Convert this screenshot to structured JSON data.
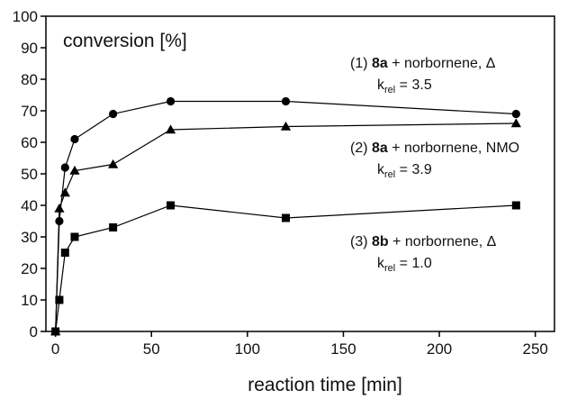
{
  "chart_data": {
    "type": "line",
    "title": "",
    "xlabel": "reaction time [min]",
    "ylabel": "conversion [%]",
    "xlim": [
      -5,
      260
    ],
    "ylim": [
      0,
      100
    ],
    "xticks": [
      0,
      50,
      100,
      150,
      200,
      250
    ],
    "yticks": [
      0,
      10,
      20,
      30,
      40,
      50,
      60,
      70,
      80,
      90,
      100
    ],
    "grid": false,
    "legend": "none",
    "series": [
      {
        "marker": "circle",
        "color": "#000000",
        "x": [
          0,
          2,
          5,
          10,
          30,
          60,
          120,
          240
        ],
        "y": [
          0,
          35,
          52,
          61,
          69,
          73,
          73,
          69
        ]
      },
      {
        "marker": "triangle",
        "color": "#000000",
        "x": [
          0,
          2,
          5,
          10,
          30,
          60,
          120,
          240
        ],
        "y": [
          0,
          39,
          44,
          51,
          53,
          64,
          65,
          66
        ]
      },
      {
        "marker": "square",
        "color": "#000000",
        "x": [
          0,
          2,
          5,
          10,
          30,
          60,
          120,
          240
        ],
        "y": [
          0,
          10,
          25,
          30,
          33,
          40,
          36,
          40
        ]
      }
    ],
    "annotations": [
      {
        "prefix": "(1) ",
        "bold": "8a",
        "suffix": " + norbornene, Δ",
        "k_sym": "k",
        "k_sub": "rel",
        "k_val": " = 3.5"
      },
      {
        "prefix": "(2) ",
        "bold": "8a",
        "suffix": " + norbornene, NMO",
        "k_sym": "k",
        "k_sub": "rel",
        "k_val": " = 3.9"
      },
      {
        "prefix": "(3) ",
        "bold": "8b",
        "suffix": " + norbornene, Δ",
        "k_sym": "k",
        "k_sub": "rel",
        "k_val": " = 1.0"
      }
    ]
  }
}
